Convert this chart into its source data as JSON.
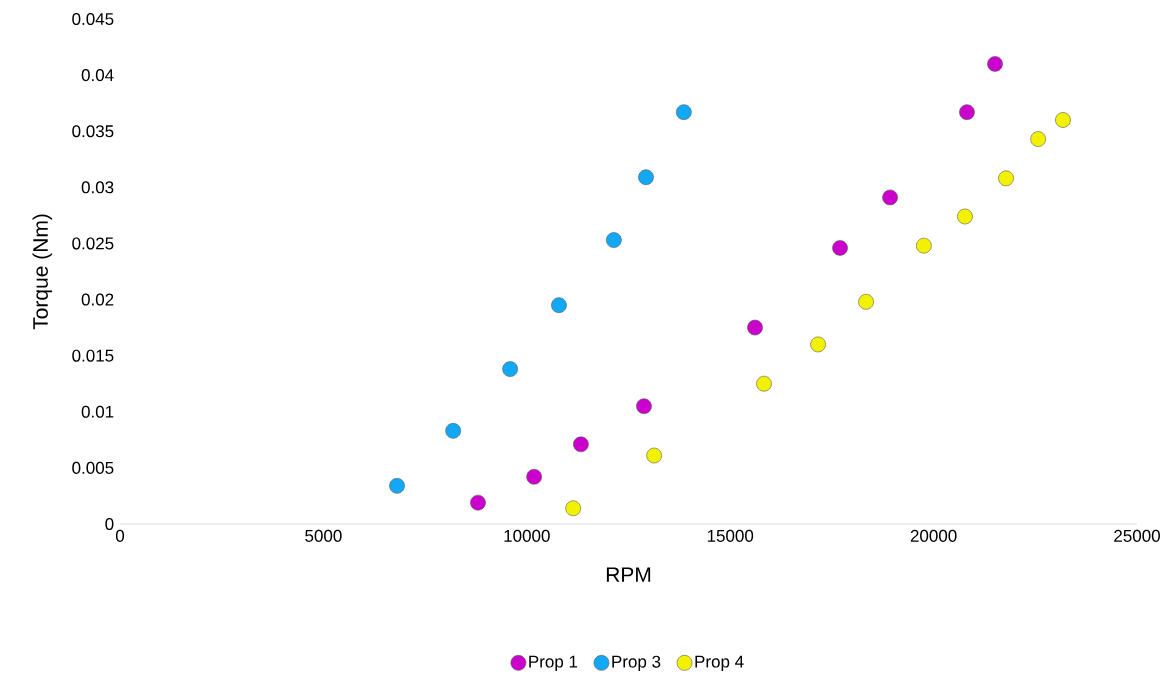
{
  "chart_data": {
    "type": "scatter",
    "xlabel": "RPM",
    "ylabel": "Torque (Nm)",
    "xlim": [
      0,
      25000
    ],
    "ylim": [
      0,
      0.045
    ],
    "xticks": [
      0,
      5000,
      10000,
      15000,
      20000,
      25000
    ],
    "yticks": [
      0,
      0.005,
      0.01,
      0.015,
      0.02,
      0.025,
      0.03,
      0.035,
      0.04,
      0.045
    ],
    "grid": false,
    "legend": "bottom",
    "series": [
      {
        "name": "Prop 1",
        "color": "#cc00cc",
        "x": [
          8800,
          10180,
          11330,
          12880,
          15610,
          17700,
          18930,
          20820,
          21510
        ],
        "values": [
          0.0019,
          0.0042,
          0.0071,
          0.0105,
          0.0175,
          0.0246,
          0.0291,
          0.0367,
          0.041
        ]
      },
      {
        "name": "Prop 3",
        "color": "#12a8f5",
        "x": [
          6810,
          8190,
          9590,
          10790,
          12140,
          12930,
          13860
        ],
        "values": [
          0.0034,
          0.0083,
          0.0138,
          0.0195,
          0.0253,
          0.0309,
          0.0367
        ]
      },
      {
        "name": "Prop 4",
        "color": "#f2f200",
        "x": [
          11140,
          13130,
          15830,
          17160,
          18340,
          19760,
          20770,
          21780,
          22570,
          23180
        ],
        "values": [
          0.0014,
          0.0061,
          0.0125,
          0.016,
          0.0198,
          0.0248,
          0.0274,
          0.0308,
          0.0343,
          0.036
        ]
      }
    ]
  }
}
